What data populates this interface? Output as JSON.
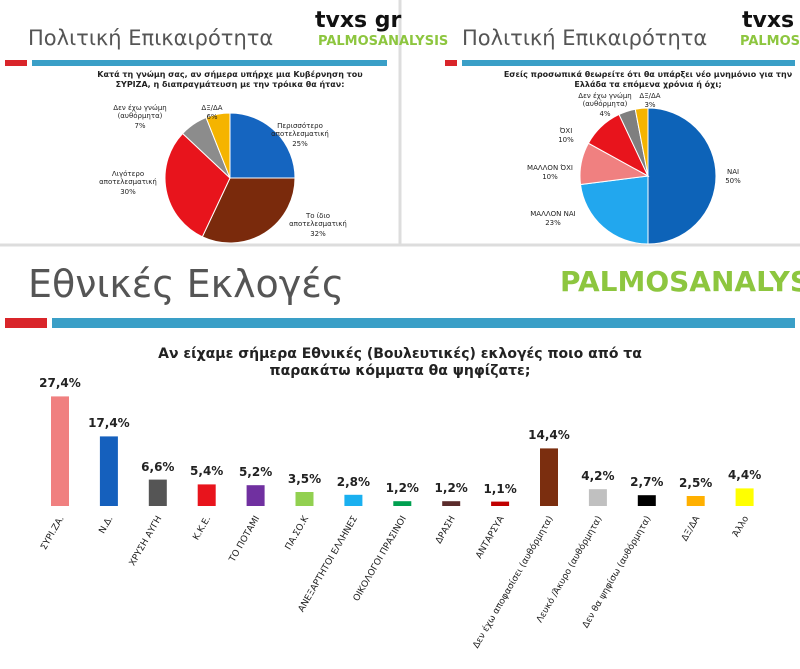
{
  "chart_data": [
    {
      "type": "pie",
      "header": "Πολιτική Επικαιρότητα",
      "logos": [
        "tvxs gr",
        "PALMOSANALYSIS"
      ],
      "title": "Κατά τη γνώμη σας, αν σήμερα υπήρχε μια Κυβέρνηση του ΣΥΡΙΖΑ, η διαπραγμάτευση με την τρόικα θα ήταν:",
      "categories": [
        "Περισσότερο αποτελεσματική",
        "Το ίδιο αποτελεσματική",
        "Λιγότερο αποτελεσματική",
        "Δεν έχω γνώμη (αυθόρμητα)",
        "ΔΞ/ΔΑ"
      ],
      "values": [
        25,
        32,
        30,
        7,
        6
      ],
      "value_labels": [
        "25%",
        "32%",
        "30%",
        "7%",
        "6%"
      ],
      "colors": [
        "#1565c0",
        "#7a2a0c",
        "#e8141c",
        "#8c8c8c",
        "#f5b400"
      ]
    },
    {
      "type": "pie",
      "header": "Πολιτική Επικαιρότητα",
      "logos": [
        "tvxs",
        "PALMOSA"
      ],
      "title": "Εσείς προσωπικά θεωρείτε ότι θα υπάρξει νέο μνημόνιο για την Ελλάδα τα επόμενα χρόνια ή όχι;",
      "categories": [
        "ΝΑΙ",
        "ΜΑΛΛΟΝ ΝΑΙ",
        "ΜΑΛΛΟΝ ΌΧΙ",
        "ΌΧΙ",
        "Δεν έχω γνώμη (αυθόρμητα)",
        "ΔΞ/ΔΑ"
      ],
      "values": [
        50,
        23,
        10,
        10,
        4,
        3
      ],
      "value_labels": [
        "50%",
        "23%",
        "10%",
        "10%",
        "4%",
        "3%"
      ],
      "colors": [
        "#0d63b8",
        "#22a7ee",
        "#f08080",
        "#e8141c",
        "#7f7f7f",
        "#f5b400"
      ]
    },
    {
      "type": "bar",
      "header": "Εθνικές Εκλογές",
      "logos": [
        "PALMOSANALYSIS"
      ],
      "title": "Αν είχαμε σήμερα Εθνικές (Βουλευτικές) εκλογές ποιο από τα παρακάτω κόμματα θα ψηφίζατε;",
      "categories": [
        "ΣΥΡΙ.ΖΑ.",
        "Ν.Δ.",
        "ΧΡΥΣΗ ΑΥΓΗ",
        "Κ.Κ.Ε.",
        "ΤΟ ΠΟΤΑΜΙ",
        "ΠΑ.ΣΟ.Κ",
        "ΑΝΕΞΑΡΤΗΤΟΙ ΕΛΛΗΝΕΣ",
        "ΟΙΚΟΛΟΓΟΙ ΠΡΑΣΙΝΟΙ",
        "ΔΡΑΣΗ",
        "ΑΝΤΑΡΣΥΑ",
        "Δεν έχω αποφασίσει (αυθόρμητα)",
        "Λευκό /Άκυρο (αυθόρμητα)",
        "Δεν θα ψηφίσω (αυθόρμητα)",
        "ΔΞ/ΔΑ",
        "Άλλο"
      ],
      "values": [
        27.4,
        17.4,
        6.6,
        5.4,
        5.2,
        3.5,
        2.8,
        1.2,
        1.2,
        1.1,
        14.4,
        4.2,
        2.7,
        2.5,
        4.4
      ],
      "value_labels": [
        "27,4%",
        "17,4%",
        "6,6%",
        "5,4%",
        "5,2%",
        "3,5%",
        "2,8%",
        "1,2%",
        "1,2%",
        "1,1%",
        "14,4%",
        "4,2%",
        "2,7%",
        "2,5%",
        "4,4%"
      ],
      "colors": [
        "#f08080",
        "#1560bd",
        "#555555",
        "#e8141c",
        "#7030a0",
        "#92d050",
        "#1ab0f0",
        "#00a050",
        "#5b2c2c",
        "#c00000",
        "#7b2e0f",
        "#c0c0c0",
        "#000000",
        "#ffb000",
        "#ffff00"
      ]
    }
  ]
}
